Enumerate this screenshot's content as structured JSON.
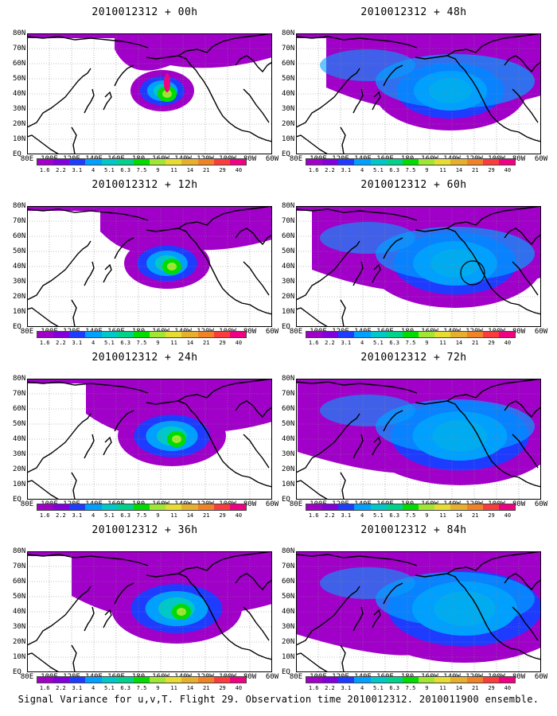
{
  "panels": [
    {
      "title": "2010012312 + 00h",
      "level": 0,
      "circle": false
    },
    {
      "title": "2010012312 + 48h",
      "level": 4,
      "circle": false
    },
    {
      "title": "2010012312 + 12h",
      "level": 1,
      "circle": false
    },
    {
      "title": "2010012312 + 60h",
      "level": 5,
      "circle": true
    },
    {
      "title": "2010012312 + 24h",
      "level": 2,
      "circle": false
    },
    {
      "title": "2010012312 + 72h",
      "level": 6,
      "circle": false
    },
    {
      "title": "2010012312 + 36h",
      "level": 3,
      "circle": false
    },
    {
      "title": "2010012312 + 84h",
      "level": 7,
      "circle": false
    }
  ],
  "lat_labels": [
    "80N",
    "70N",
    "60N",
    "50N",
    "40N",
    "30N",
    "20N",
    "10N",
    "EQ"
  ],
  "lon_labels": [
    "80E",
    "100E",
    "120E",
    "140E",
    "160E",
    "180",
    "160W",
    "140W",
    "120W",
    "100W",
    "80W",
    "60W"
  ],
  "colorbar": {
    "labels": [
      "1.6",
      "2.2",
      "3.1",
      "4",
      "5.1",
      "6.3",
      "7.5",
      "9",
      "11",
      "14",
      "21",
      "29",
      "40"
    ],
    "colors": [
      "#a000c8",
      "#8200dc",
      "#1e3cff",
      "#00a0ff",
      "#00c8c8",
      "#00d28c",
      "#00dc00",
      "#a0e632",
      "#e6dc32",
      "#e6af2d",
      "#f08228",
      "#fa3c3c",
      "#f00082"
    ]
  },
  "footer": "Signal Variance for u,v,T. Flight 29. Observation time 2010012312. 2010011900 ensemble."
}
